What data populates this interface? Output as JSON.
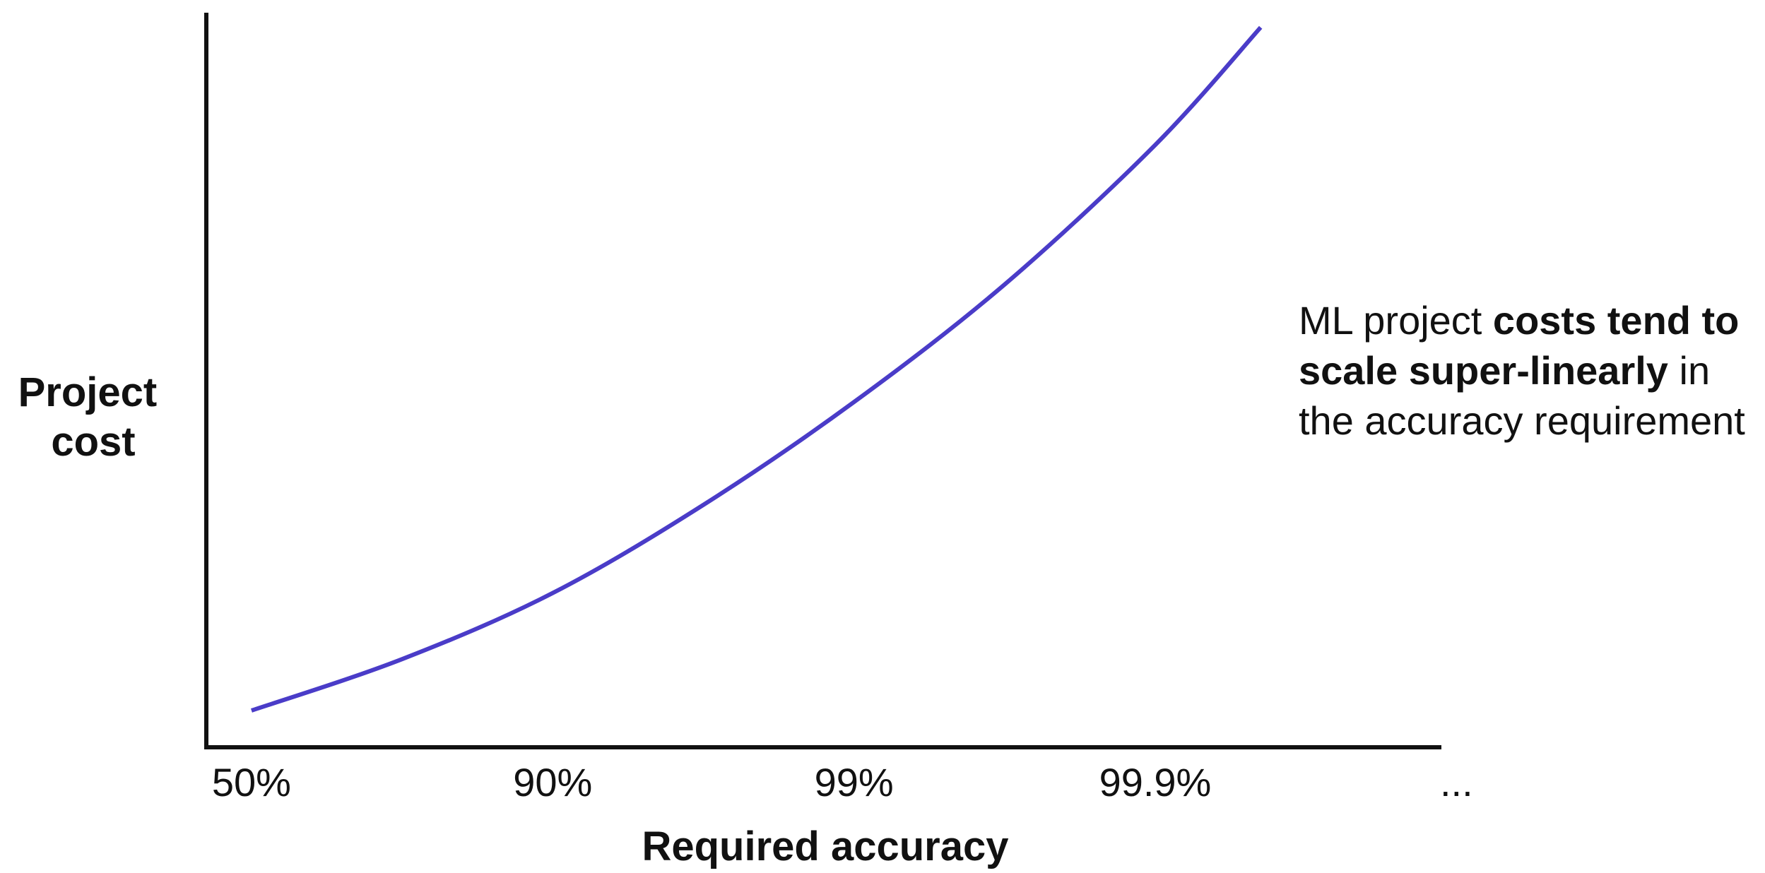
{
  "chart_data": {
    "type": "line",
    "xlabel": "Required accuracy",
    "ylabel_lines": [
      "Project",
      "cost"
    ],
    "categories": [
      "50%",
      "90%",
      "99%",
      "99.9%",
      "..."
    ],
    "series": [
      {
        "x": [
          0,
          0.5,
          1,
          1.5,
          2,
          2.5,
          3,
          3.35
        ],
        "y": [
          0.05,
          0.12,
          0.21,
          0.33,
          0.47,
          0.63,
          0.82,
          0.98
        ]
      }
    ],
    "ylim": [
      0,
      1
    ],
    "xlim": [
      -0.15,
      3.95
    ],
    "grid": false,
    "colors": {
      "line": "#4A3CC8",
      "axis": "#111111"
    }
  },
  "annotation": {
    "parts": [
      {
        "text": "ML project ",
        "bold": false
      },
      {
        "text": "costs tend to scale super-linearly",
        "bold": true
      },
      {
        "text": " in the accuracy requirement",
        "bold": false
      }
    ]
  }
}
